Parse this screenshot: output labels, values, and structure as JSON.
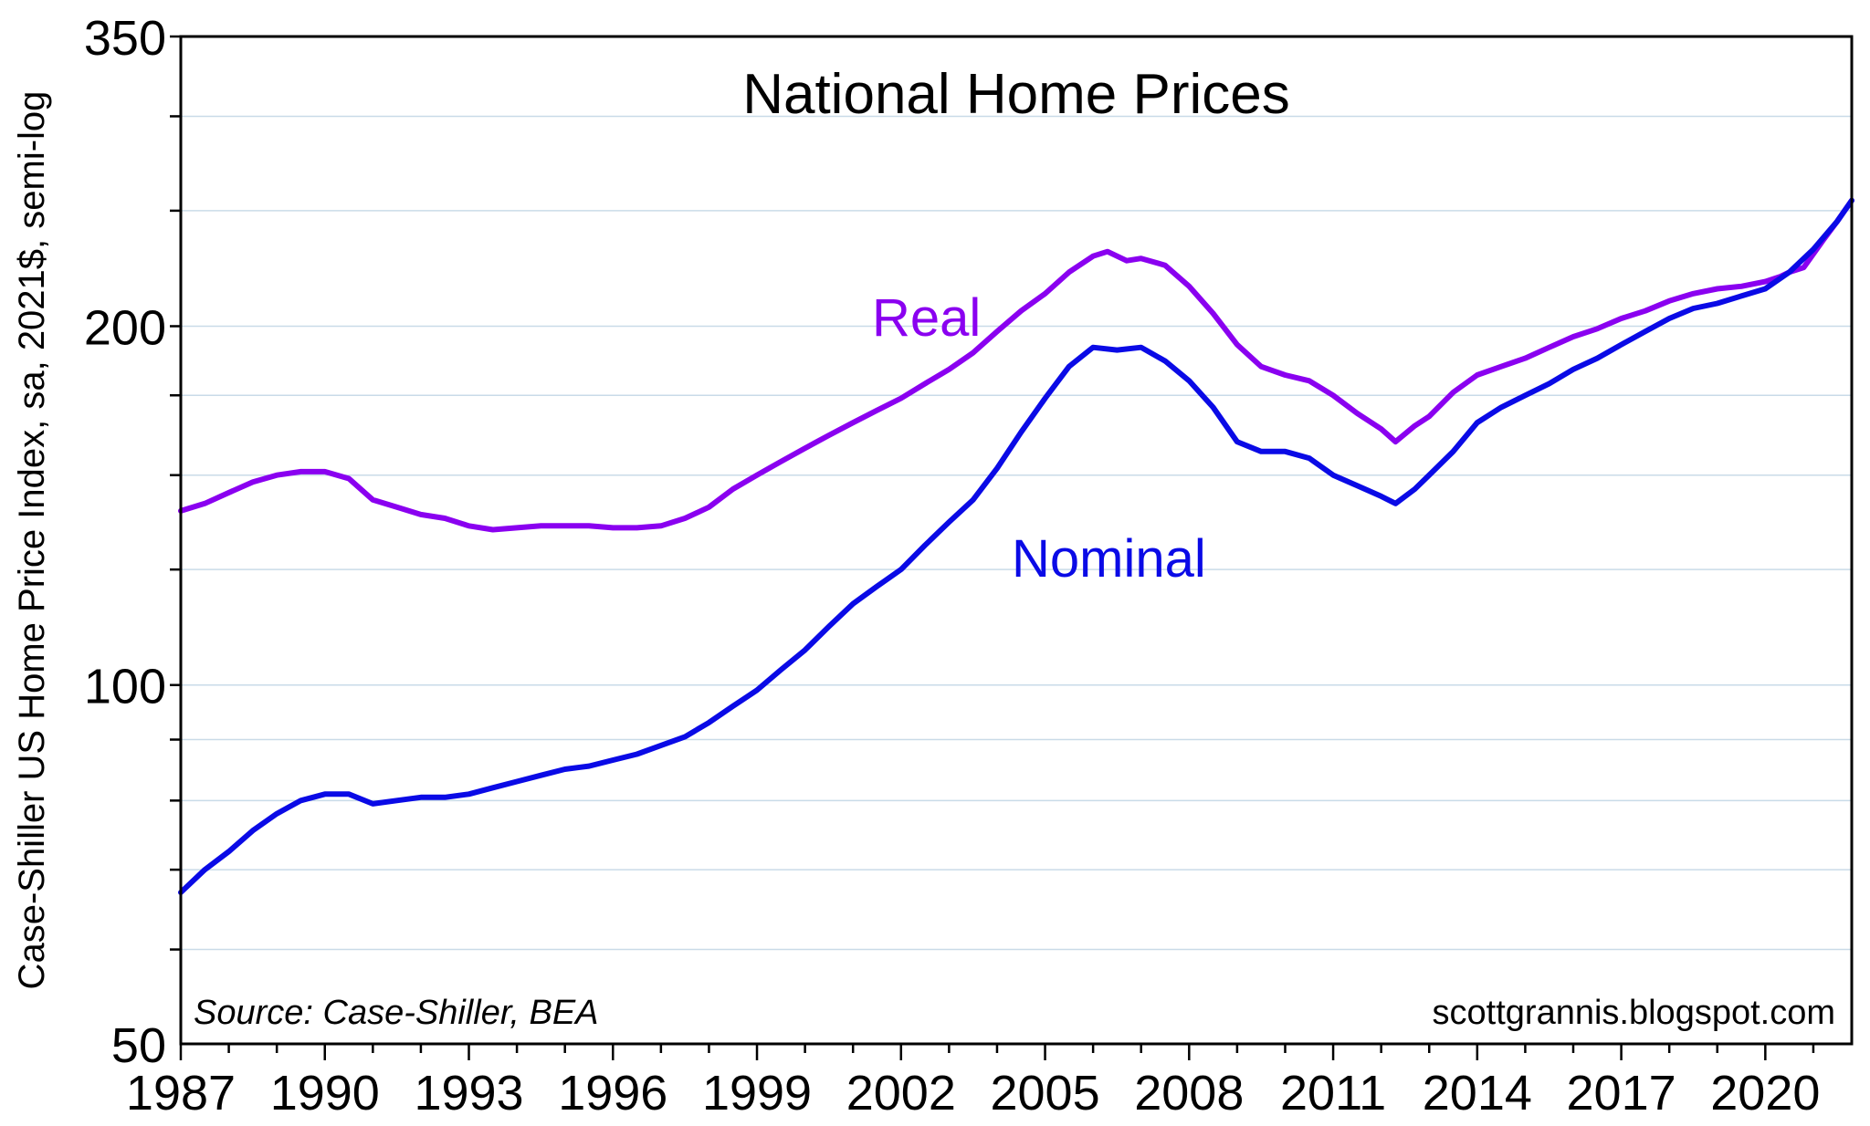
{
  "chart_data": {
    "type": "line",
    "title": "National Home Prices",
    "ylabel": "Case-Shiller US Home Price Index, sa, 2021$, semi-log",
    "xlabel": "",
    "y_scale": "log",
    "ylim": [
      50,
      350
    ],
    "xlim": [
      1987,
      2021.8
    ],
    "y_tick_labels": [
      {
        "value": 350,
        "label": "350"
      },
      {
        "value": 200,
        "label": "200"
      },
      {
        "value": 100,
        "label": "100"
      },
      {
        "value": 50,
        "label": "50"
      }
    ],
    "y_gridlines": [
      60,
      70,
      80,
      90,
      100,
      125,
      150,
      175,
      200,
      250,
      300,
      350
    ],
    "x_ticks": [
      1987,
      1990,
      1993,
      1996,
      1999,
      2002,
      2005,
      2008,
      2011,
      2014,
      2017,
      2020
    ],
    "x_tick_labels": [
      "1987",
      "1990",
      "1993",
      "1996",
      "1999",
      "2002",
      "2005",
      "2008",
      "2011",
      "2014",
      "2017",
      "2020"
    ],
    "grid": true,
    "series": [
      {
        "name": "Real",
        "label": "Real",
        "color": "#8a00f0",
        "points": [
          [
            1987.0,
            140
          ],
          [
            1987.5,
            142
          ],
          [
            1988.0,
            145
          ],
          [
            1988.5,
            148
          ],
          [
            1989.0,
            150
          ],
          [
            1989.5,
            151
          ],
          [
            1990.0,
            151
          ],
          [
            1990.5,
            149
          ],
          [
            1991.0,
            143
          ],
          [
            1991.5,
            141
          ],
          [
            1992.0,
            139
          ],
          [
            1992.5,
            138
          ],
          [
            1993.0,
            136
          ],
          [
            1993.5,
            135
          ],
          [
            1994.0,
            135.5
          ],
          [
            1994.5,
            136
          ],
          [
            1995.0,
            136
          ],
          [
            1995.5,
            136
          ],
          [
            1996.0,
            135.5
          ],
          [
            1996.5,
            135.5
          ],
          [
            1997.0,
            136
          ],
          [
            1997.5,
            138
          ],
          [
            1998.0,
            141
          ],
          [
            1998.5,
            146
          ],
          [
            1999.0,
            150
          ],
          [
            1999.5,
            154
          ],
          [
            2000.0,
            158
          ],
          [
            2000.5,
            162
          ],
          [
            2001.0,
            166
          ],
          [
            2001.5,
            170
          ],
          [
            2002.0,
            174
          ],
          [
            2002.5,
            179
          ],
          [
            2003.0,
            184
          ],
          [
            2003.5,
            190
          ],
          [
            2004.0,
            198
          ],
          [
            2004.5,
            206
          ],
          [
            2005.0,
            213
          ],
          [
            2005.5,
            222
          ],
          [
            2006.0,
            229
          ],
          [
            2006.3,
            231
          ],
          [
            2006.7,
            227
          ],
          [
            2007.0,
            228
          ],
          [
            2007.5,
            225
          ],
          [
            2008.0,
            216
          ],
          [
            2008.5,
            205
          ],
          [
            2009.0,
            193
          ],
          [
            2009.5,
            185
          ],
          [
            2010.0,
            182
          ],
          [
            2010.5,
            180
          ],
          [
            2011.0,
            175
          ],
          [
            2011.5,
            169
          ],
          [
            2012.0,
            164
          ],
          [
            2012.3,
            160
          ],
          [
            2012.7,
            165
          ],
          [
            2013.0,
            168
          ],
          [
            2013.5,
            176
          ],
          [
            2014.0,
            182
          ],
          [
            2014.5,
            185
          ],
          [
            2015.0,
            188
          ],
          [
            2015.5,
            192
          ],
          [
            2016.0,
            196
          ],
          [
            2016.5,
            199
          ],
          [
            2017.0,
            203
          ],
          [
            2017.5,
            206
          ],
          [
            2018.0,
            210
          ],
          [
            2018.5,
            213
          ],
          [
            2019.0,
            215
          ],
          [
            2019.5,
            216
          ],
          [
            2020.0,
            218
          ],
          [
            2020.3,
            220
          ],
          [
            2020.5,
            222
          ],
          [
            2020.8,
            224
          ],
          [
            2021.2,
            236
          ],
          [
            2021.5,
            245
          ],
          [
            2021.8,
            255
          ]
        ]
      },
      {
        "name": "Nominal",
        "label": "Nominal",
        "color": "#0a0ae6",
        "points": [
          [
            1987.0,
            67
          ],
          [
            1987.5,
            70
          ],
          [
            1988.0,
            72.5
          ],
          [
            1988.5,
            75.5
          ],
          [
            1989.0,
            78
          ],
          [
            1989.5,
            80
          ],
          [
            1990.0,
            81
          ],
          [
            1990.5,
            81
          ],
          [
            1991.0,
            79.5
          ],
          [
            1991.5,
            80
          ],
          [
            1992.0,
            80.5
          ],
          [
            1992.5,
            80.5
          ],
          [
            1993.0,
            81
          ],
          [
            1993.5,
            82
          ],
          [
            1994.0,
            83
          ],
          [
            1994.5,
            84
          ],
          [
            1995.0,
            85
          ],
          [
            1995.5,
            85.5
          ],
          [
            1996.0,
            86.5
          ],
          [
            1996.5,
            87.5
          ],
          [
            1997.0,
            89
          ],
          [
            1997.5,
            90.5
          ],
          [
            1998.0,
            93
          ],
          [
            1998.5,
            96
          ],
          [
            1999.0,
            99
          ],
          [
            1999.5,
            103
          ],
          [
            2000.0,
            107
          ],
          [
            2000.5,
            112
          ],
          [
            2001.0,
            117
          ],
          [
            2001.5,
            121
          ],
          [
            2002.0,
            125
          ],
          [
            2002.5,
            131
          ],
          [
            2003.0,
            137
          ],
          [
            2003.5,
            143
          ],
          [
            2004.0,
            152
          ],
          [
            2004.5,
            163
          ],
          [
            2005.0,
            174
          ],
          [
            2005.5,
            185
          ],
          [
            2006.0,
            192
          ],
          [
            2006.5,
            191
          ],
          [
            2007.0,
            192
          ],
          [
            2007.5,
            187
          ],
          [
            2008.0,
            180
          ],
          [
            2008.5,
            171
          ],
          [
            2009.0,
            160
          ],
          [
            2009.5,
            157
          ],
          [
            2010.0,
            157
          ],
          [
            2010.5,
            155
          ],
          [
            2011.0,
            150
          ],
          [
            2011.5,
            147
          ],
          [
            2012.0,
            144
          ],
          [
            2012.3,
            142
          ],
          [
            2012.7,
            146
          ],
          [
            2013.0,
            150
          ],
          [
            2013.5,
            157
          ],
          [
            2014.0,
            166
          ],
          [
            2014.5,
            171
          ],
          [
            2015.0,
            175
          ],
          [
            2015.5,
            179
          ],
          [
            2016.0,
            184
          ],
          [
            2016.5,
            188
          ],
          [
            2017.0,
            193
          ],
          [
            2017.5,
            198
          ],
          [
            2018.0,
            203
          ],
          [
            2018.5,
            207
          ],
          [
            2019.0,
            209
          ],
          [
            2019.5,
            212
          ],
          [
            2020.0,
            215
          ],
          [
            2020.5,
            222
          ],
          [
            2021.0,
            232
          ],
          [
            2021.5,
            245
          ],
          [
            2021.8,
            255
          ]
        ]
      }
    ],
    "annotations": [
      {
        "text": "Real",
        "series": "Real",
        "color": "#8a00f0"
      },
      {
        "text": "Nominal",
        "series": "Nominal",
        "color": "#0a0ae6"
      }
    ],
    "source_note": "Source: Case-Shiller, BEA",
    "watermark": "scottgrannis.blogspot.com"
  }
}
